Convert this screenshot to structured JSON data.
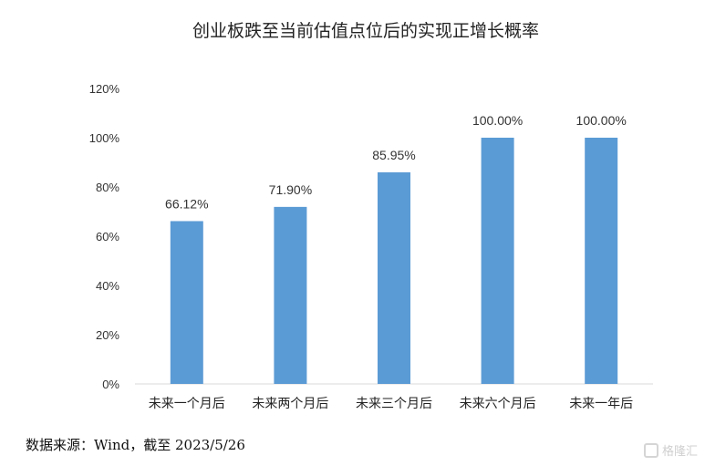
{
  "chart_data": {
    "type": "bar",
    "title": "创业板跌至当前估值点位后的实现正增长概率",
    "categories": [
      "未来一个月后",
      "未来两个月后",
      "未来三个月后",
      "未来六个月后",
      "未来一年后"
    ],
    "values": [
      66.12,
      71.9,
      85.95,
      100.0,
      100.0
    ],
    "data_labels": [
      "66.12%",
      "71.90%",
      "85.95%",
      "100.00%",
      "100.00%"
    ],
    "y_ticks": [
      "0%",
      "20%",
      "40%",
      "60%",
      "80%",
      "100%",
      "120%"
    ],
    "ylim": [
      0,
      120
    ],
    "xlabel": "",
    "ylabel": "",
    "grid": false,
    "bar_color": "#5b9bd5"
  },
  "source": "数据来源：Wind，截至 2023/5/26",
  "watermark": {
    "icon": "gelonghui-logo-icon",
    "text": "格隆汇"
  }
}
